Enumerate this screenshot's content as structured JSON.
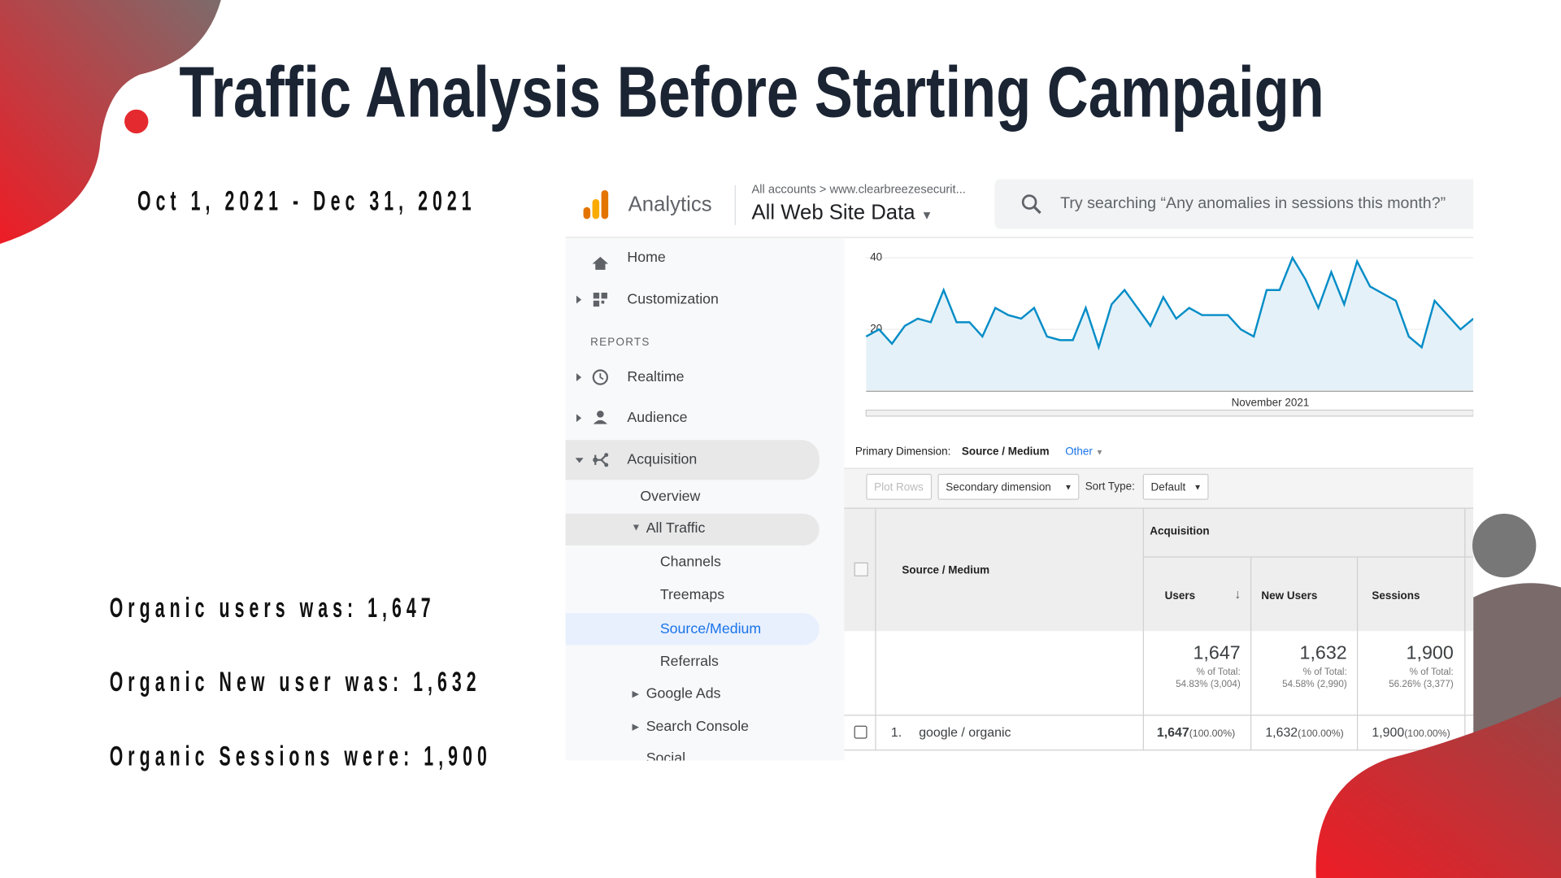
{
  "slide": {
    "title": "Traffic Analysis Before Starting Campaign",
    "date_range": "Oct 1, 2021 - Dec 31, 2021",
    "stats": [
      "Organic users was: 1,647",
      "Organic New user was: 1,632",
      "Organic Sessions were: 1,900"
    ]
  },
  "analytics": {
    "brand": "Analytics",
    "breadcrumb": "All accounts > www.clearbreezesecurit...",
    "view": "All Web Site Data",
    "search_placeholder": "Try searching “Any anomalies in sessions this month?”",
    "nav": {
      "home": "Home",
      "customization": "Customization",
      "reports": "REPORTS",
      "realtime": "Realtime",
      "audience": "Audience",
      "acquisition": "Acquisition",
      "overview": "Overview",
      "all_traffic": "All Traffic",
      "channels": "Channels",
      "treemaps": "Treemaps",
      "source_medium": "Source/Medium",
      "referrals": "Referrals",
      "google_ads": "Google Ads",
      "search_console": "Search Console",
      "social": "Social"
    },
    "chart": {
      "type": "line",
      "color": "#058dc7",
      "values": [
        18,
        20,
        16,
        21,
        23,
        22,
        31,
        22,
        22,
        18,
        26,
        24,
        23,
        26,
        18,
        17,
        17,
        26,
        15,
        27,
        31,
        26,
        21,
        29,
        23,
        26,
        24,
        24,
        24,
        20,
        18,
        31,
        31,
        40,
        34,
        26,
        36,
        27,
        39,
        32,
        30,
        28,
        18,
        15,
        28,
        24,
        20,
        23
      ],
      "ylim": [
        3,
        45
      ],
      "yticks": [
        20,
        40
      ],
      "grid": true,
      "xlabel": "November 2021"
    },
    "table": {
      "primary_dimension_label": "Primary Dimension:",
      "primary_dimension": "Source / Medium",
      "other": "Other",
      "plot_rows": "Plot Rows",
      "secondary_dimension": "Secondary dimension",
      "sort_type": "Sort Type:",
      "sort_default": "Default",
      "group": "Acquisition",
      "columns": [
        "Source / Medium",
        "Users",
        "New Users",
        "Sessions"
      ],
      "totals": [
        {
          "value": "1,647",
          "pct_label": "% of Total:",
          "pct": "54.83% (3,004)"
        },
        {
          "value": "1,632",
          "pct_label": "% of Total:",
          "pct": "54.58% (2,990)"
        },
        {
          "value": "1,900",
          "pct_label": "% of Total:",
          "pct": "56.26% (3,377)"
        }
      ],
      "rows": [
        {
          "index": "1.",
          "source": "google / organic",
          "cells": [
            {
              "value": "1,647",
              "pct": "(100.00%)"
            },
            {
              "value": "1,632",
              "pct": "(100.00%)"
            },
            {
              "value": "1,900",
              "pct": "(100.00%)"
            }
          ]
        }
      ]
    }
  }
}
